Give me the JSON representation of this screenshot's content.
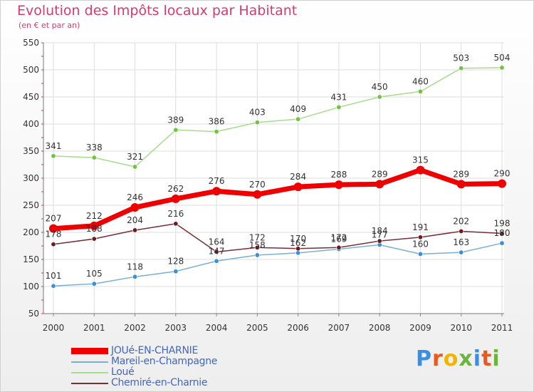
{
  "title": "Evolution des Impôts locaux par Habitant",
  "subtitle": "(en € et par an)",
  "brand": {
    "letters": [
      "P",
      "r",
      "o",
      "x",
      "i",
      "t",
      "i"
    ],
    "colors": [
      "#3a8ee6",
      "#e85a20",
      "#f2b400",
      "#6cb33f",
      "#3a8ee6",
      "#e85a20",
      "#6cb33f"
    ]
  },
  "chart_data": {
    "type": "line",
    "title": "Evolution des Impôts locaux par Habitant",
    "subtitle": "(en € et par an)",
    "xlabel": "",
    "ylabel": "",
    "x": [
      "2000",
      "2001",
      "2002",
      "2003",
      "2004",
      "2005",
      "2006",
      "2007",
      "2008",
      "2009",
      "2010",
      "2011"
    ],
    "ylim": [
      50,
      550
    ],
    "yticks": [
      "50",
      "100",
      "150",
      "200",
      "250",
      "300",
      "350",
      "400",
      "450",
      "500",
      "550"
    ],
    "grid": true,
    "legend_position": "bottom-left",
    "series": [
      {
        "name": "JOUé-EN-CHARNIE",
        "color": "#ee0000",
        "point_color": "#ee0000",
        "values": [
          207,
          212,
          246,
          262,
          276,
          270,
          284,
          288,
          289,
          315,
          289,
          290
        ],
        "labels": [
          "207",
          "212",
          "246",
          "262",
          "276",
          "270",
          "284",
          "288",
          "289",
          "315",
          "289",
          "290"
        ]
      },
      {
        "name": "Mareil-en-Champagne",
        "color": "#7aaed6",
        "point_color": "#3b8fd4",
        "values": [
          101,
          105,
          118,
          128,
          147,
          158,
          162,
          169,
          177,
          160,
          163,
          180
        ],
        "labels": [
          "101",
          "105",
          "118",
          "128",
          "147",
          "158",
          "162",
          "169",
          "177",
          "160",
          "163",
          "180"
        ]
      },
      {
        "name": "Loué",
        "color": "#a6dc8c",
        "point_color": "#72c240",
        "values": [
          341,
          338,
          321,
          389,
          386,
          403,
          409,
          431,
          450,
          460,
          503,
          504
        ],
        "labels": [
          "341",
          "338",
          "321",
          "389",
          "386",
          "403",
          "409",
          "431",
          "450",
          "460",
          "503",
          "504"
        ]
      },
      {
        "name": "Chemiré-en-Charnie",
        "color": "#7a2e36",
        "point_color": "#6a1c24",
        "values": [
          178,
          188,
          204,
          216,
          164,
          172,
          170,
          172,
          184,
          191,
          202,
          198
        ],
        "labels": [
          "178",
          "188",
          "204",
          "216",
          "164",
          "172",
          "170",
          "172",
          "184",
          "191",
          "202",
          "198"
        ]
      }
    ]
  }
}
